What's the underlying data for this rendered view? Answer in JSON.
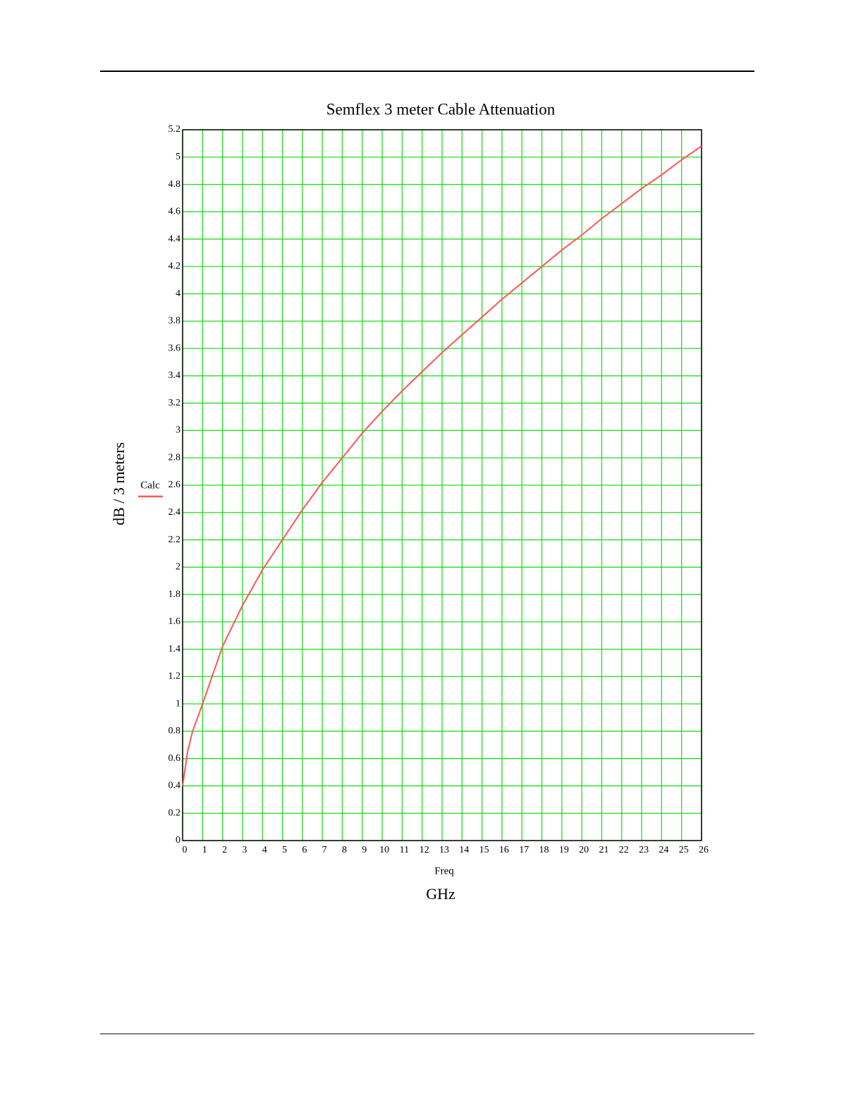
{
  "chart_data": {
    "type": "line",
    "title": "Semflex 3 meter Cable Attenuation",
    "x_label": "Freq",
    "x_unit": "GHz",
    "y_label": "dB / 3 meters",
    "x": [
      0,
      0.25,
      0.5,
      1,
      2,
      3,
      4,
      5,
      6,
      7,
      8,
      9,
      10,
      11,
      12,
      13,
      14,
      15,
      16,
      17,
      18,
      19,
      20,
      21,
      22,
      23,
      24,
      25,
      26
    ],
    "series": [
      {
        "name": "Calc",
        "color": "#ff5555",
        "values": [
          0.4,
          0.65,
          0.8,
          1.0,
          1.42,
          1.72,
          1.98,
          2.2,
          2.42,
          2.62,
          2.8,
          2.98,
          3.14,
          3.29,
          3.43,
          3.57,
          3.7,
          3.83,
          3.96,
          4.08,
          4.2,
          4.32,
          4.43,
          4.55,
          4.66,
          4.77,
          4.87,
          4.98,
          5.08
        ]
      }
    ],
    "xlim": [
      0,
      26
    ],
    "xticks": [
      0,
      1,
      2,
      3,
      4,
      5,
      6,
      7,
      8,
      9,
      10,
      11,
      12,
      13,
      14,
      15,
      16,
      17,
      18,
      19,
      20,
      21,
      22,
      23,
      24,
      25,
      26
    ],
    "ylim": [
      0,
      5.2
    ],
    "yticks": [
      0,
      0.2,
      0.4,
      0.6,
      0.8,
      1,
      1.2,
      1.4,
      1.6,
      1.8,
      2,
      2.2,
      2.4,
      2.6,
      2.8,
      3,
      3.2,
      3.4,
      3.6,
      3.8,
      4,
      4.2,
      4.4,
      4.6,
      4.8,
      5,
      5.2
    ],
    "grid": true,
    "grid_color": "#22dd22"
  }
}
